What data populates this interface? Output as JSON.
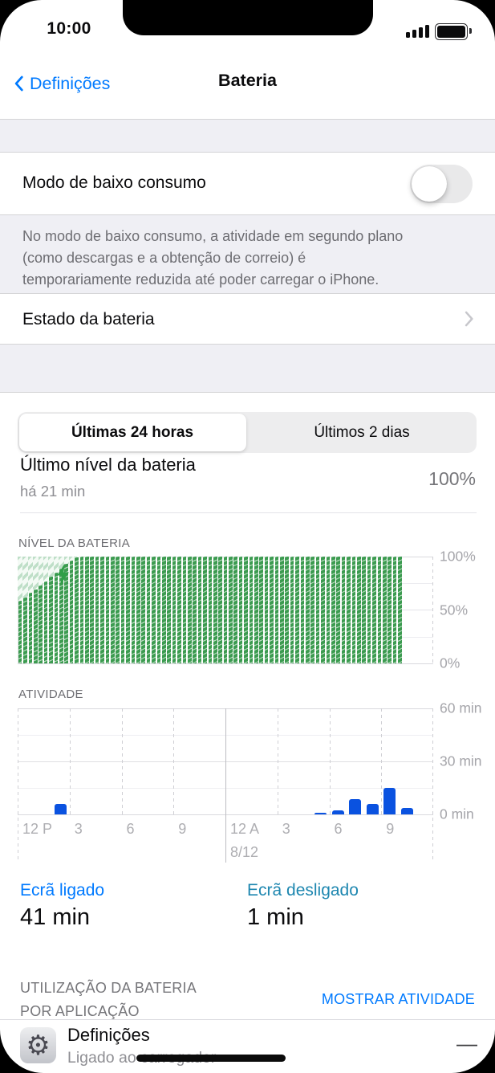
{
  "status_bar": {
    "time": "10:00",
    "signal_icon": "signal-bars-icon",
    "battery_icon": "battery-full-icon"
  },
  "nav": {
    "back_label": "Definições",
    "title": "Bateria"
  },
  "low_power": {
    "label": "Modo de baixo consumo",
    "state": "off",
    "description_lines": [
      "No modo de baixo consumo, a atividade em segundo plano",
      "(como descargas e a obtenção de correio) é",
      "temporariamente reduzida até poder carregar o iPhone."
    ]
  },
  "battery_health_row": {
    "label": "Estado da bateria"
  },
  "time_range_tabs": {
    "options": [
      "Últimas 24 horas",
      "Últimos 2 dias"
    ],
    "selected_index": 0
  },
  "last_charge": {
    "label": "Último nível da bateria",
    "time_ago": "há 21 min",
    "value": "100%"
  },
  "chart_data": [
    {
      "type": "bar",
      "title": "NÍVEL DA BATERIA",
      "ylabel_ticks": [
        "100%",
        "50%",
        "0%"
      ],
      "ylim": [
        0,
        100
      ],
      "x_range": "24 h window (noon to noon), 15-min bars starting ~14:00",
      "charging_overlay": true,
      "charging_bolt_icon": "charging-bolt-icon",
      "values": [
        59,
        62,
        66,
        69,
        73,
        77,
        81,
        85,
        89,
        93,
        96,
        99,
        100,
        100,
        100,
        100,
        100,
        100,
        100,
        100,
        100,
        100,
        100,
        100,
        100,
        100,
        100,
        100,
        100,
        100,
        100,
        100,
        100,
        100,
        100,
        100,
        100,
        100,
        100,
        100,
        100,
        100,
        100,
        100,
        100,
        100,
        100,
        100,
        100,
        100,
        100,
        100,
        100,
        100,
        100,
        100,
        100,
        100,
        100,
        100,
        100,
        100,
        100,
        100,
        100,
        100,
        100,
        100,
        100,
        100,
        100,
        100,
        100,
        100,
        100,
        null,
        null,
        null,
        null,
        null,
        null
      ]
    },
    {
      "type": "bar",
      "title": "ATIVIDADE",
      "ylabel_ticks": [
        "60 min",
        "30 min",
        "0 min"
      ],
      "ylim": [
        0,
        60
      ],
      "x_tick_labels": [
        "12 P",
        "3",
        "6",
        "9",
        "12 A",
        "3",
        "6",
        "9"
      ],
      "x_date_label": "8/12",
      "categories_hours": [
        "12 PM",
        "1 PM",
        "2 PM",
        "3 PM",
        "4 PM",
        "5 PM",
        "6 PM",
        "7 PM",
        "8 PM",
        "9 PM",
        "10 PM",
        "11 PM",
        "12 AM",
        "1 AM",
        "2 AM",
        "3 AM",
        "4 AM",
        "5 AM",
        "6 AM",
        "7 AM",
        "8 AM",
        "9 AM",
        "10 AM",
        "11 AM"
      ],
      "values": [
        0,
        0,
        6,
        0,
        0,
        0,
        0,
        0,
        0,
        0,
        0,
        0,
        0,
        0,
        0,
        0,
        0,
        1,
        2.5,
        8.5,
        6,
        15,
        3.5,
        0
      ]
    }
  ],
  "screen_time": {
    "on_label": "Ecrã ligado",
    "on_value": "41 min",
    "off_label": "Ecrã desligado",
    "off_value": "1 min"
  },
  "usage_by_app": {
    "header_lines": [
      "UTILIZAÇÃO DA BATERIA",
      "POR APLICAÇÃO"
    ],
    "action_label": "MOSTRAR ATIVIDADE",
    "rows": [
      {
        "app": "Definições",
        "status": "Ligado ao carregador",
        "value": "—",
        "icon": "settings-gear-icon"
      }
    ]
  },
  "colors": {
    "accent_blue": "#007AFF",
    "activity_bar_blue": "#0A52E0",
    "battery_green": "#3C9B50",
    "charging_hatch_green": "#BFDFC8",
    "screen_off_teal": "#1E87B0",
    "grouped_bg_gray": "#EFEFF4"
  }
}
